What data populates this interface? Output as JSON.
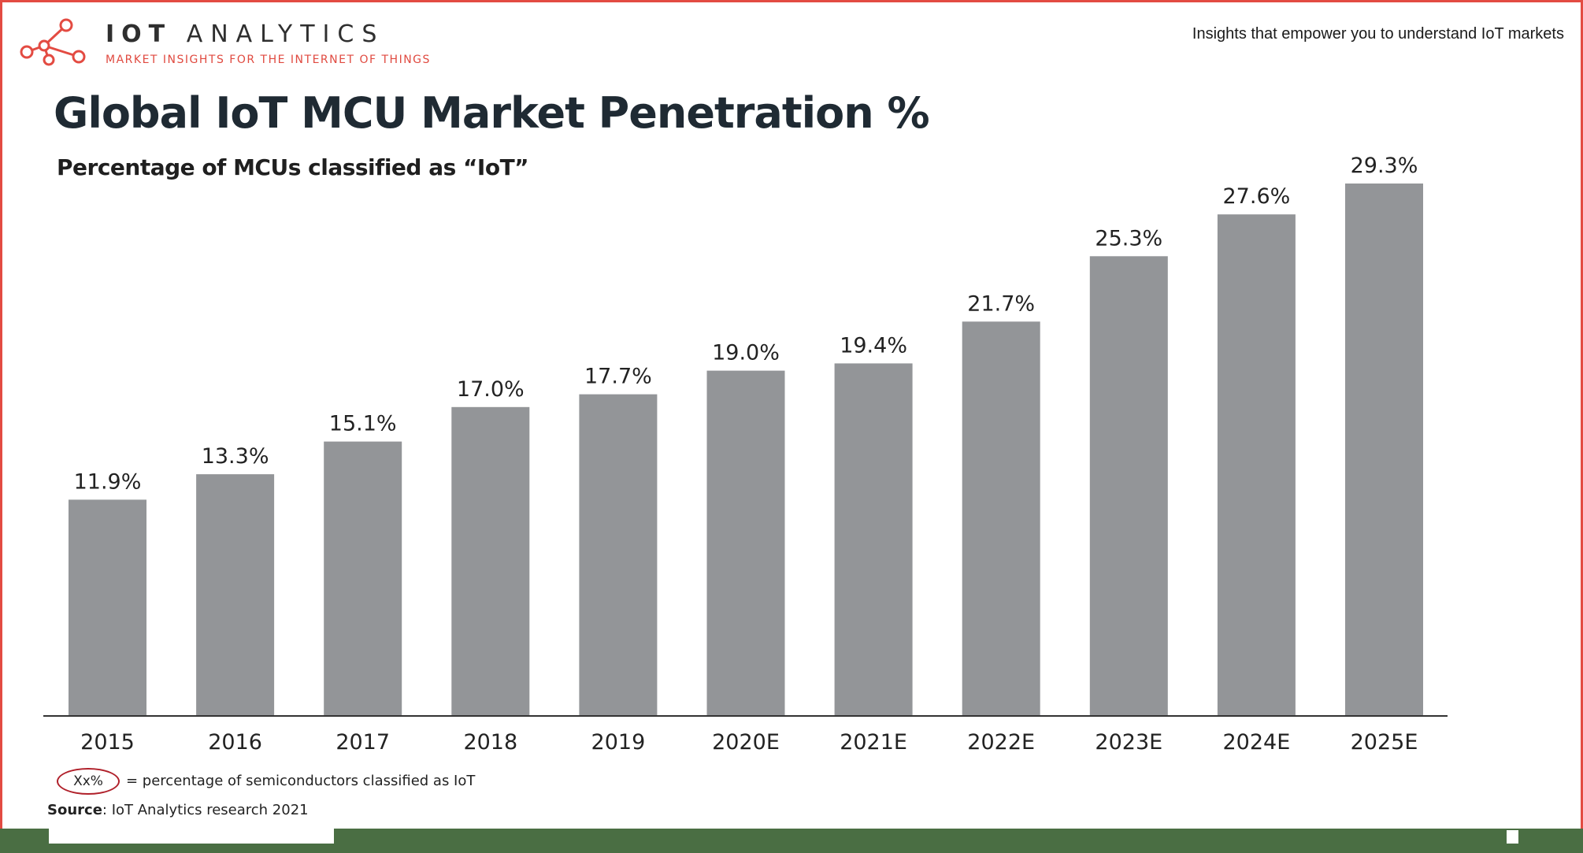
{
  "header": {
    "brand_bold": "IOT",
    "brand_light": "ANALYTICS",
    "tagline": "MARKET INSIGHTS FOR THE INTERNET OF THINGS",
    "slogan": "Insights that empower you to understand IoT markets"
  },
  "colors": {
    "accent": "#e34b42",
    "bar": "#939598",
    "title": "#1f2a33",
    "footer_band": "#4a6e43"
  },
  "legend": {
    "symbol": "Xx%",
    "text": "= percentage of semiconductors classified as IoT"
  },
  "source": {
    "label": "Source",
    "text": ": IoT Analytics research 2021"
  },
  "chart_data": {
    "type": "bar",
    "title": "Global IoT MCU Market Penetration %",
    "subtitle": "Percentage of MCUs classified as “IoT”",
    "categories": [
      "2015",
      "2016",
      "2017",
      "2018",
      "2019",
      "2020E",
      "2021E",
      "2022E",
      "2023E",
      "2024E",
      "2025E"
    ],
    "values": [
      11.9,
      13.3,
      15.1,
      17.0,
      17.7,
      19.0,
      19.4,
      21.7,
      25.3,
      27.6,
      29.3
    ],
    "value_labels": [
      "11.9%",
      "13.3%",
      "15.1%",
      "17.0%",
      "17.7%",
      "19.0%",
      "19.4%",
      "21.7%",
      "25.3%",
      "27.6%",
      "29.3%"
    ],
    "unit": "%",
    "xlabel": "",
    "ylabel": "",
    "ylim": [
      0,
      29.3
    ],
    "grid": false,
    "legend": "bottom-left"
  }
}
